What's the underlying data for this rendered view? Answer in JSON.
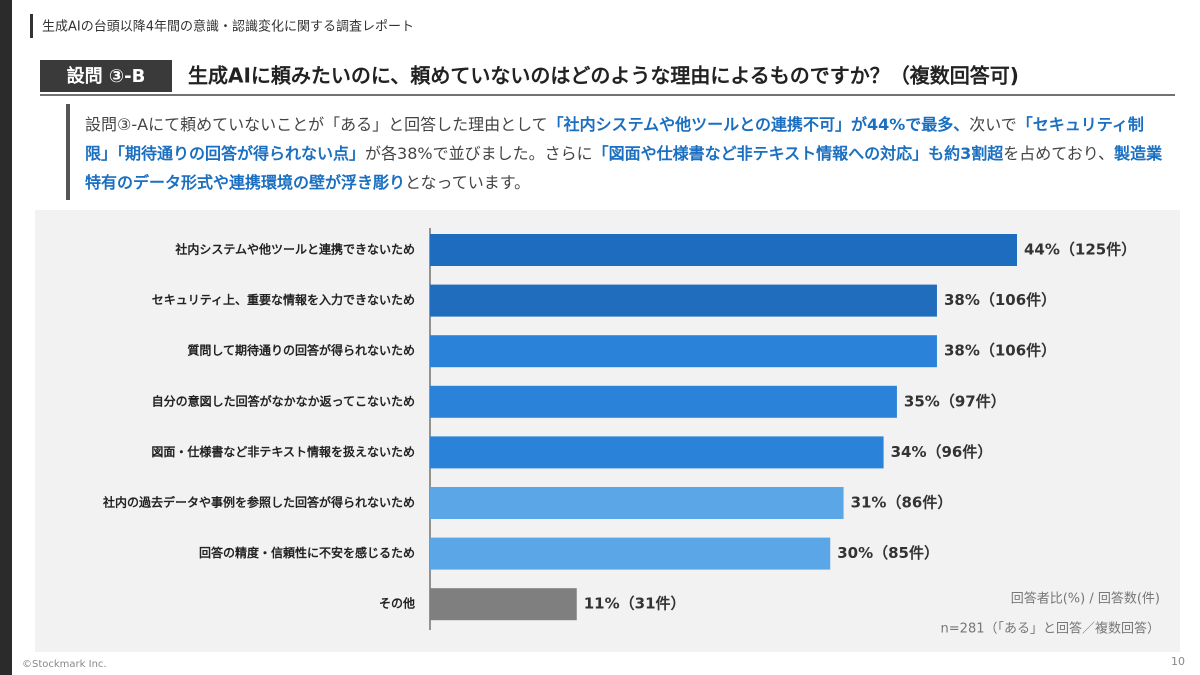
{
  "header": {
    "report_title": "生成AIの台頭以降4年間の意識・認識変化に関する調査レポート",
    "question_label": "設問 ③-B",
    "question": "生成AIに頼みたいのに、頼めていないのはどのような理由によるものですか？（複数回答可)"
  },
  "description": [
    {
      "text": "設問③-Aにて頼めていないことが「ある」と回答した理由として",
      "highlight": false
    },
    {
      "text": "「社内システムや他ツールとの連携不可」が44%で最多、",
      "highlight": true
    },
    {
      "text": "次いで",
      "highlight": false
    },
    {
      "text": "「セキュリティ制限」「期待通りの回答が得られない点」",
      "highlight": true
    },
    {
      "text": "が各38%で並びました。さらに",
      "highlight": false
    },
    {
      "text": "「図面や仕様書など非テキスト情報への対応」も約3割超",
      "highlight": true
    },
    {
      "text": "を占めており、",
      "highlight": false
    },
    {
      "text": "製造業特有のデータ形式や連携環境の壁が浮き彫り",
      "highlight": true
    },
    {
      "text": "となっています。",
      "highlight": false
    }
  ],
  "chart_data": {
    "type": "hbar",
    "categories": [
      "社内システムや他ツールと連携できないため",
      "セキュリティ上、重要な情報を入力できないため",
      "質問して期待通りの回答が得られないため",
      "自分の意図した回答がなかなか返ってこないため",
      "図面・仕様書など非テキスト情報を扱えないため",
      "社内の過去データや事例を参照した回答が得られないため",
      "回答の精度・信頼性に不安を感じるため",
      "その他"
    ],
    "values": [
      44,
      38,
      38,
      35,
      34,
      31,
      30,
      11
    ],
    "value_labels": [
      "44%（125件）",
      "38%（106件）",
      "38%（106件）",
      "35%（97件）",
      "34%（96件）",
      "31%（86件）",
      "30%（85件）",
      "11%（31件）"
    ],
    "colors": [
      "#1e6cc0",
      "#1f6dbc",
      "#2a83d8",
      "#2a83d8",
      "#2a83d8",
      "#5ba6e6",
      "#5ba6e6",
      "#7f7f7f"
    ],
    "notes": [
      "回答者比(%) / 回答数(件)",
      "n=281（「ある」と回答／複数回答）"
    ]
  },
  "footer": {
    "copyright": "©Stockmark Inc.",
    "page": "10"
  }
}
